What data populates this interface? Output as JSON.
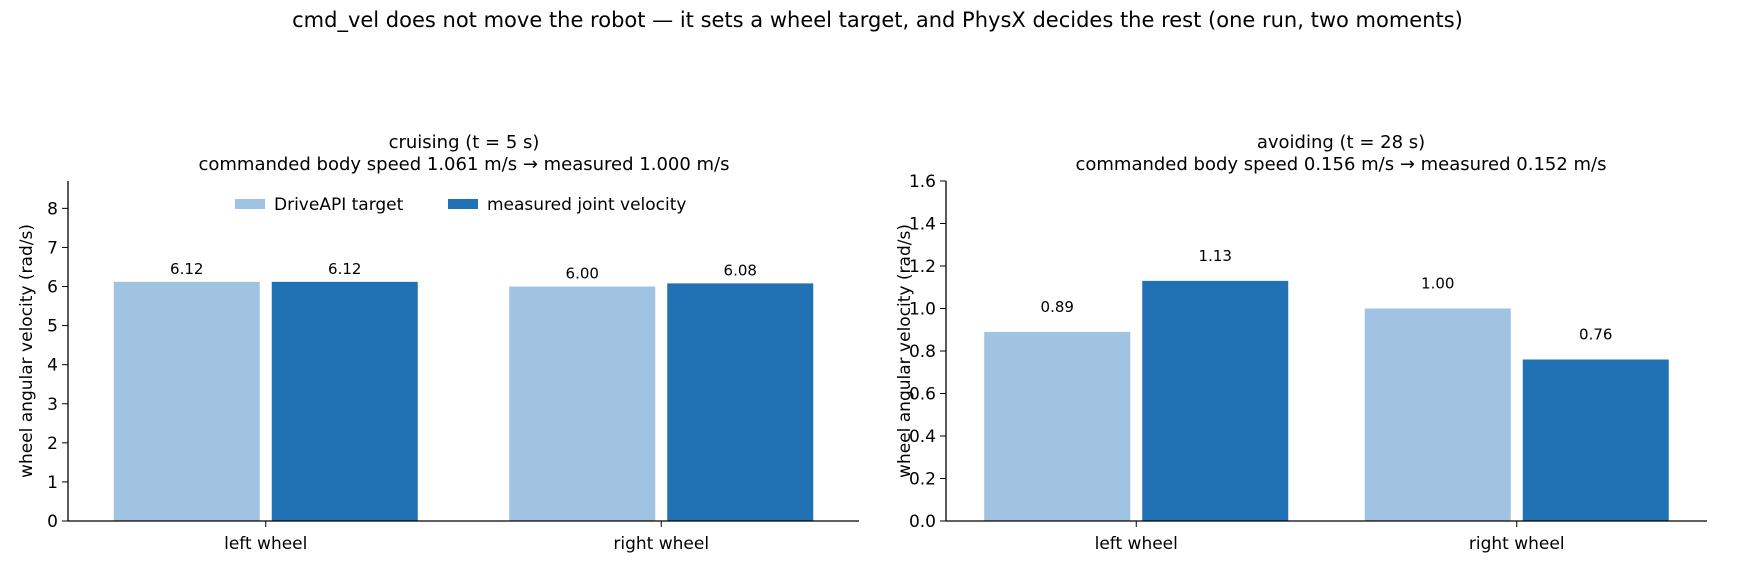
{
  "figure": {
    "suptitle": "cmd_vel does not move the robot — it sets a wheel target, and PhysX decides the rest  (one run, two moments)"
  },
  "legend": {
    "items": [
      {
        "label": "DriveAPI target",
        "color": "#9fc3e0"
      },
      {
        "label": "measured joint velocity",
        "color": "#2171b5"
      }
    ],
    "placement": "upper-center"
  },
  "chart_data": [
    {
      "type": "bar",
      "title": "cruising  (t = 5 s)",
      "subtitle": "commanded body speed 1.061 m/s  →  measured 1.000 m/s",
      "ylabel": "wheel angular velocity (rad/s)",
      "xlabel": "",
      "categories": [
        "left wheel",
        "right wheel"
      ],
      "series": [
        {
          "name": "DriveAPI target",
          "values": [
            6.12,
            6.0
          ],
          "labels": [
            "6.12",
            "6.00"
          ],
          "color": "#9fc3e0"
        },
        {
          "name": "measured joint velocity",
          "values": [
            6.12,
            6.08
          ],
          "labels": [
            "6.12",
            "6.08"
          ],
          "color": "#2171b5"
        }
      ],
      "ylim": [
        0,
        8.7
      ],
      "yticks": [
        0,
        1,
        2,
        3,
        4,
        5,
        6,
        7,
        8
      ],
      "ytick_labels": [
        "0",
        "1",
        "2",
        "3",
        "4",
        "5",
        "6",
        "7",
        "8"
      ],
      "grid": false,
      "legend": true
    },
    {
      "type": "bar",
      "title": "avoiding  (t = 28 s)",
      "subtitle": "commanded body speed 0.156 m/s  →  measured 0.152 m/s",
      "ylabel": "wheel angular velocity (rad/s)",
      "xlabel": "",
      "categories": [
        "left wheel",
        "right wheel"
      ],
      "series": [
        {
          "name": "DriveAPI target",
          "values": [
            0.89,
            1.0
          ],
          "labels": [
            "0.89",
            "1.00"
          ],
          "color": "#9fc3e0"
        },
        {
          "name": "measured joint velocity",
          "values": [
            1.13,
            0.76
          ],
          "labels": [
            "1.13",
            "0.76"
          ],
          "color": "#2171b5"
        }
      ],
      "ylim": [
        0,
        1.6
      ],
      "yticks": [
        0,
        0.2,
        0.4,
        0.6,
        0.8,
        1.0,
        1.2,
        1.4,
        1.6
      ],
      "ytick_labels": [
        "0.0",
        "0.2",
        "0.4",
        "0.6",
        "0.8",
        "1.0",
        "1.2",
        "1.4",
        "1.6"
      ],
      "grid": false,
      "legend": false
    }
  ]
}
